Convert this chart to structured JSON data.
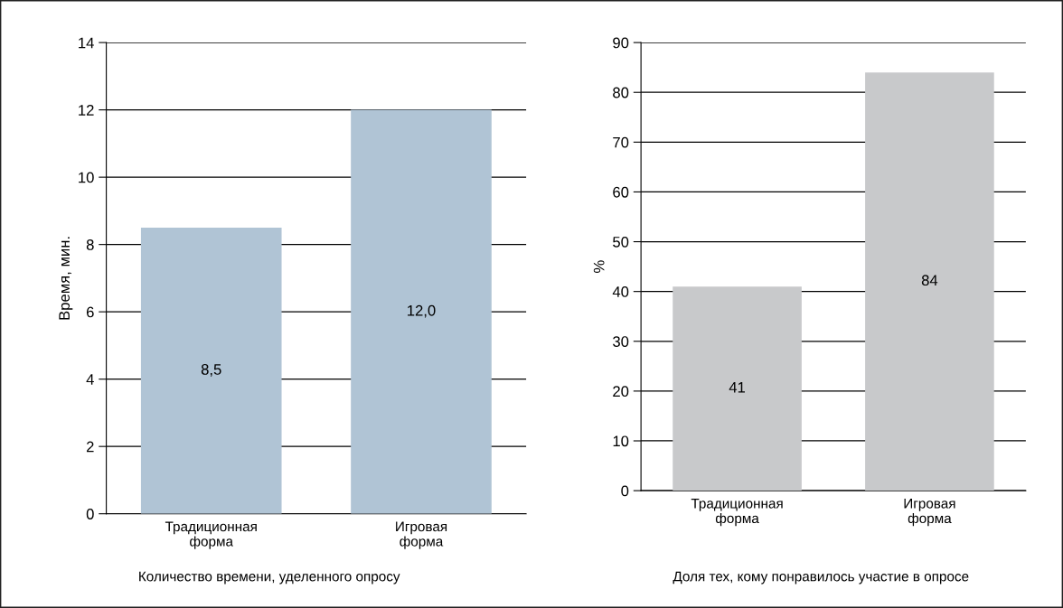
{
  "chart_data": [
    {
      "type": "bar",
      "title": "Количество времени, уделенного опросу",
      "ylabel": "Время, мин.",
      "categories": [
        "Традиционная\nформа",
        "Игровая\nформа"
      ],
      "values": [
        8.5,
        12.0
      ],
      "value_labels": [
        "8,5",
        "12,0"
      ],
      "color": "#b0c4d5",
      "ylim": [
        0,
        14
      ],
      "yticks": [
        0,
        2,
        4,
        6,
        8,
        10,
        12,
        14
      ],
      "grid": "y",
      "legend": false
    },
    {
      "type": "bar",
      "title": "Доля тех, кому понравилось участие в опросе",
      "ylabel": "%",
      "categories": [
        "Традиционная\nформа",
        "Игровая\nформа"
      ],
      "values": [
        41,
        84
      ],
      "value_labels": [
        "41",
        "84"
      ],
      "color": "#c8c9cb",
      "ylim": [
        0,
        90
      ],
      "yticks": [
        0,
        10,
        20,
        30,
        40,
        50,
        60,
        70,
        80,
        90
      ],
      "grid": "y",
      "legend": false
    }
  ]
}
